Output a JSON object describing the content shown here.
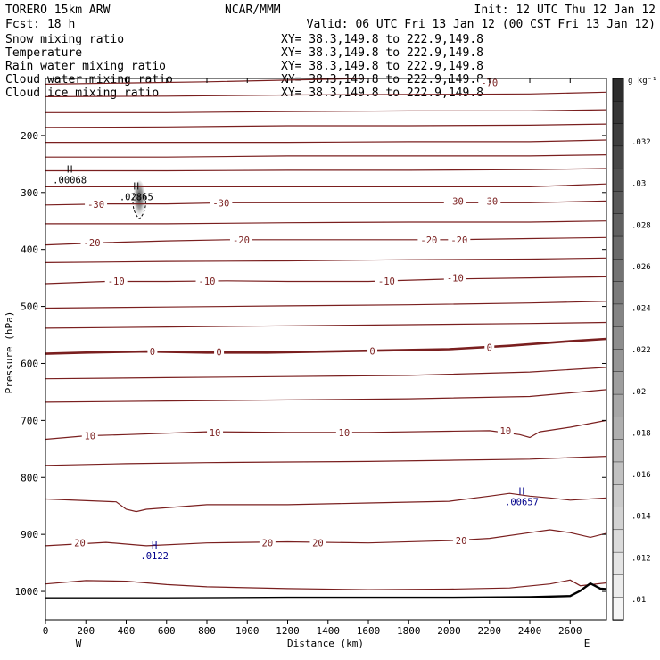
{
  "header": {
    "model": "TORERO  15km ARW",
    "org": "NCAR/MMM",
    "init": "Init: 12 UTC Thu 12 Jan 12",
    "fcst": "Fcst:   18 h",
    "valid": "Valid: 06 UTC Fri 13 Jan 12 (00 CST Fri 13 Jan 12)"
  },
  "fields": [
    {
      "name": "Snow mixing ratio",
      "xy": "XY=  38.3,149.8 to 222.9,149.8",
      "color": "#000000"
    },
    {
      "name": "Temperature",
      "xy": "XY=  38.3,149.8 to 222.9,149.8",
      "color": "#cc0000"
    },
    {
      "name": "Rain water mixing ratio",
      "xy": "XY=  38.3,149.8 to 222.9,149.8",
      "color": "#cc0000"
    },
    {
      "name": "Cloud water mixing ratio",
      "xy": "XY=  38.3,149.8 to 222.9,149.8",
      "color": "#00008b"
    },
    {
      "name": "Cloud ice mixing ratio",
      "xy": "XY=  38.3,149.8 to 222.9,149.8",
      "color": "#000000"
    }
  ],
  "chart_data": {
    "type": "line",
    "title": "",
    "xlabel": "Distance (km)",
    "ylabel": "Pressure (hPa)",
    "xlim": [
      0,
      2780
    ],
    "ylim": [
      1050,
      100
    ],
    "x_ticks": [
      0,
      200,
      400,
      600,
      800,
      1000,
      1200,
      1400,
      1600,
      1800,
      2000,
      2200,
      2400,
      2600
    ],
    "y_ticks": [
      200,
      300,
      400,
      500,
      600,
      700,
      800,
      900,
      1000
    ],
    "x_end_labels": {
      "left": "W",
      "right": "E"
    },
    "colorbar": {
      "unit": "g kg⁻¹",
      "ticks": [
        ".032",
        ".03",
        ".028",
        ".026",
        ".024",
        ".022",
        ".02",
        ".018",
        ".016",
        ".014",
        ".012",
        ".01"
      ]
    },
    "isotherm_color": "#7a1f1f",
    "isotherms": [
      {
        "points": [
          [
            0,
            110
          ],
          [
            400,
            108
          ],
          [
            800,
            106
          ],
          [
            1200,
            103
          ],
          [
            1600,
            100
          ],
          [
            2000,
            98
          ],
          [
            2400,
            96
          ],
          [
            2780,
            94
          ]
        ],
        "labels": [
          {
            "text": "-70",
            "at": [
              2200,
              107
            ]
          }
        ]
      },
      {
        "points": [
          [
            0,
            132
          ],
          [
            600,
            131
          ],
          [
            1200,
            129
          ],
          [
            1800,
            128
          ],
          [
            2400,
            127
          ],
          [
            2780,
            124
          ]
        ]
      },
      {
        "points": [
          [
            0,
            160
          ],
          [
            600,
            160
          ],
          [
            1200,
            158
          ],
          [
            1800,
            157
          ],
          [
            2400,
            157
          ],
          [
            2780,
            155
          ]
        ]
      },
      {
        "points": [
          [
            0,
            186
          ],
          [
            600,
            185
          ],
          [
            1200,
            183
          ],
          [
            1800,
            183
          ],
          [
            2400,
            182
          ],
          [
            2780,
            180
          ]
        ]
      },
      {
        "points": [
          [
            0,
            212
          ],
          [
            600,
            212
          ],
          [
            1200,
            212
          ],
          [
            1800,
            211
          ],
          [
            2400,
            211
          ],
          [
            2780,
            208
          ]
        ]
      },
      {
        "points": [
          [
            0,
            238
          ],
          [
            600,
            238
          ],
          [
            1200,
            236
          ],
          [
            1800,
            236
          ],
          [
            2400,
            236
          ],
          [
            2780,
            234
          ]
        ]
      },
      {
        "points": [
          [
            0,
            262
          ],
          [
            600,
            262
          ],
          [
            1200,
            261
          ],
          [
            1800,
            261
          ],
          [
            2400,
            260
          ],
          [
            2780,
            258
          ]
        ]
      },
      {
        "points": [
          [
            0,
            290
          ],
          [
            600,
            290
          ],
          [
            1200,
            290
          ],
          [
            1800,
            290
          ],
          [
            2400,
            290
          ],
          [
            2780,
            285
          ]
        ]
      },
      {
        "points": [
          [
            0,
            322
          ],
          [
            300,
            320
          ],
          [
            600,
            320
          ],
          [
            900,
            318
          ],
          [
            1200,
            318
          ],
          [
            1600,
            318
          ],
          [
            2000,
            318
          ],
          [
            2400,
            318
          ],
          [
            2780,
            315
          ]
        ],
        "labels": [
          {
            "text": "-30",
            "at": [
              250,
              321
            ]
          },
          {
            "text": "-30",
            "at": [
              870,
              318
            ]
          },
          {
            "text": "-30",
            "at": [
              2030,
              315
            ]
          },
          {
            "text": "-30",
            "at": [
              2200,
              315
            ]
          }
        ]
      },
      {
        "points": [
          [
            0,
            355
          ],
          [
            600,
            355
          ],
          [
            1200,
            353
          ],
          [
            1800,
            352
          ],
          [
            2400,
            352
          ],
          [
            2780,
            350
          ]
        ]
      },
      {
        "points": [
          [
            0,
            392
          ],
          [
            300,
            388
          ],
          [
            600,
            385
          ],
          [
            900,
            383
          ],
          [
            1200,
            383
          ],
          [
            1600,
            383
          ],
          [
            2000,
            383
          ],
          [
            2400,
            381
          ],
          [
            2780,
            379
          ]
        ],
        "labels": [
          {
            "text": "-20",
            "at": [
              230,
              388
            ]
          },
          {
            "text": "-20",
            "at": [
              970,
              383
            ]
          },
          {
            "text": "-20",
            "at": [
              1900,
              383
            ]
          },
          {
            "text": "-20",
            "at": [
              2050,
              383
            ]
          }
        ]
      },
      {
        "points": [
          [
            0,
            423
          ],
          [
            600,
            421
          ],
          [
            1200,
            420
          ],
          [
            1800,
            418
          ],
          [
            2400,
            417
          ],
          [
            2780,
            415
          ]
        ]
      },
      {
        "points": [
          [
            0,
            460
          ],
          [
            300,
            456
          ],
          [
            600,
            456
          ],
          [
            900,
            455
          ],
          [
            1200,
            456
          ],
          [
            1600,
            456
          ],
          [
            2000,
            452
          ],
          [
            2400,
            450
          ],
          [
            2780,
            448
          ]
        ],
        "labels": [
          {
            "text": "-10",
            "at": [
              350,
              455
            ]
          },
          {
            "text": "-10",
            "at": [
              800,
              455
            ]
          },
          {
            "text": "-10",
            "at": [
              1690,
              455
            ]
          },
          {
            "text": "-10",
            "at": [
              2030,
              450
            ]
          }
        ]
      },
      {
        "points": [
          [
            0,
            503
          ],
          [
            600,
            501
          ],
          [
            1200,
            499
          ],
          [
            1800,
            497
          ],
          [
            2400,
            494
          ],
          [
            2780,
            491
          ]
        ]
      },
      {
        "points": [
          [
            0,
            538
          ],
          [
            600,
            536
          ],
          [
            1200,
            534
          ],
          [
            1800,
            532
          ],
          [
            2400,
            530
          ],
          [
            2780,
            528
          ]
        ]
      },
      {
        "points": [
          [
            0,
            583
          ],
          [
            200,
            581
          ],
          [
            500,
            579
          ],
          [
            800,
            581
          ],
          [
            1100,
            581
          ],
          [
            1400,
            579
          ],
          [
            1700,
            577
          ],
          [
            2000,
            575
          ],
          [
            2300,
            569
          ],
          [
            2600,
            561
          ],
          [
            2780,
            557
          ]
        ],
        "width": 2.6,
        "labels": [
          {
            "text": "0",
            "at": [
              530,
              579
            ]
          },
          {
            "text": "0",
            "at": [
              860,
              580
            ]
          },
          {
            "text": "0",
            "at": [
              1620,
              578
            ]
          },
          {
            "text": "0",
            "at": [
              2200,
              572
            ]
          }
        ]
      },
      {
        "points": [
          [
            0,
            627
          ],
          [
            600,
            625
          ],
          [
            1200,
            623
          ],
          [
            1800,
            621
          ],
          [
            2400,
            615
          ],
          [
            2780,
            607
          ]
        ]
      },
      {
        "points": [
          [
            0,
            668
          ],
          [
            600,
            666
          ],
          [
            1200,
            664
          ],
          [
            1800,
            662
          ],
          [
            2400,
            658
          ],
          [
            2780,
            646
          ]
        ]
      },
      {
        "points": [
          [
            0,
            733
          ],
          [
            200,
            727
          ],
          [
            400,
            725
          ],
          [
            800,
            720
          ],
          [
            1200,
            721
          ],
          [
            1600,
            721
          ],
          [
            2000,
            719
          ],
          [
            2200,
            718
          ],
          [
            2350,
            725
          ],
          [
            2400,
            730
          ],
          [
            2450,
            720
          ],
          [
            2600,
            712
          ],
          [
            2780,
            700
          ]
        ],
        "labels": [
          {
            "text": "10",
            "at": [
              220,
              727
            ]
          },
          {
            "text": "10",
            "at": [
              840,
              721
            ]
          },
          {
            "text": "10",
            "at": [
              1480,
              721
            ]
          },
          {
            "text": "10",
            "at": [
              2280,
              718
            ]
          }
        ]
      },
      {
        "points": [
          [
            0,
            779
          ],
          [
            400,
            776
          ],
          [
            800,
            774
          ],
          [
            1200,
            773
          ],
          [
            1600,
            772
          ],
          [
            2000,
            770
          ],
          [
            2400,
            768
          ],
          [
            2780,
            763
          ]
        ]
      },
      {
        "points": [
          [
            0,
            838
          ],
          [
            350,
            843
          ],
          [
            400,
            856
          ],
          [
            450,
            860
          ],
          [
            500,
            856
          ],
          [
            800,
            848
          ],
          [
            1200,
            848
          ],
          [
            1600,
            845
          ],
          [
            2000,
            842
          ],
          [
            2200,
            833
          ],
          [
            2300,
            828
          ],
          [
            2400,
            833
          ],
          [
            2500,
            836
          ],
          [
            2600,
            840
          ],
          [
            2780,
            836
          ]
        ]
      },
      {
        "points": [
          [
            0,
            920
          ],
          [
            300,
            914
          ],
          [
            400,
            917
          ],
          [
            500,
            920
          ],
          [
            800,
            915
          ],
          [
            1200,
            913
          ],
          [
            1600,
            915
          ],
          [
            2000,
            911
          ],
          [
            2200,
            907
          ],
          [
            2400,
            897
          ],
          [
            2500,
            892
          ],
          [
            2600,
            897
          ],
          [
            2700,
            905
          ],
          [
            2780,
            898
          ]
        ],
        "labels": [
          {
            "text": "20",
            "at": [
              170,
              915
            ]
          },
          {
            "text": "20",
            "at": [
              1100,
              915
            ]
          },
          {
            "text": "20",
            "at": [
              1350,
              915
            ]
          },
          {
            "text": "20",
            "at": [
              2060,
              911
            ]
          }
        ]
      },
      {
        "points": [
          [
            0,
            987
          ],
          [
            200,
            981
          ],
          [
            400,
            982
          ],
          [
            600,
            988
          ],
          [
            800,
            992
          ],
          [
            1200,
            995
          ],
          [
            1600,
            997
          ],
          [
            2000,
            996
          ],
          [
            2300,
            994
          ],
          [
            2500,
            987
          ],
          [
            2600,
            980
          ],
          [
            2650,
            990
          ],
          [
            2780,
            985
          ]
        ]
      }
    ],
    "ground": {
      "points": [
        [
          0,
          1012
        ],
        [
          600,
          1012
        ],
        [
          1200,
          1011
        ],
        [
          1600,
          1011
        ],
        [
          2000,
          1011
        ],
        [
          2400,
          1010
        ],
        [
          2600,
          1008
        ],
        [
          2650,
          999
        ],
        [
          2700,
          986
        ],
        [
          2750,
          995
        ],
        [
          2780,
          996
        ]
      ]
    },
    "snow_maximum": {
      "label": "H",
      "value": ".00068",
      "at": [
        120,
        265
      ]
    },
    "cloud_ice_maximum": {
      "label": "H",
      "value": ".02865",
      "at": [
        450,
        295
      ]
    },
    "cloud_water_maxima": [
      {
        "label": "H",
        "value": ".00657",
        "at": [
          2360,
          830
        ],
        "color": "#00008b"
      },
      {
        "label": "H",
        "value": ".0122",
        "at": [
          540,
          925
        ],
        "color": "#00008b"
      }
    ],
    "ice_plume": {
      "center_x": 465,
      "top": 285,
      "bottom": 340
    }
  }
}
